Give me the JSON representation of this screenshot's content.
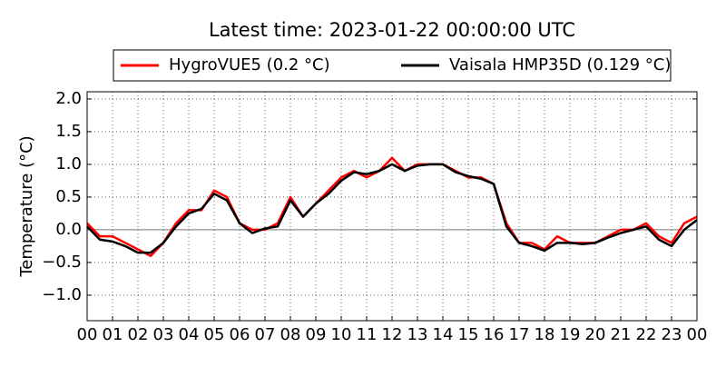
{
  "chart_data": {
    "type": "line",
    "title": "Latest time: 2023-01-22 00:00:00 UTC",
    "ylabel": "Temperature (°C)",
    "x": [
      0,
      0.5,
      1,
      1.5,
      2,
      2.5,
      3,
      3.5,
      4,
      4.5,
      5,
      5.5,
      6,
      6.5,
      7,
      7.5,
      8,
      8.5,
      9,
      9.5,
      10,
      10.5,
      11,
      11.5,
      12,
      12.5,
      13,
      13.5,
      14,
      14.5,
      15,
      15.5,
      16,
      16.5,
      17,
      17.5,
      18,
      18.5,
      19,
      19.5,
      20,
      20.5,
      21,
      21.5,
      22,
      22.5,
      23,
      23.5,
      24
    ],
    "series": [
      {
        "name": "HygroVUE5 (0.2 °C)",
        "color": "#ff0000",
        "values": [
          0.1,
          -0.1,
          -0.1,
          -0.2,
          -0.3,
          -0.4,
          -0.2,
          0.1,
          0.3,
          0.3,
          0.6,
          0.5,
          0.1,
          0,
          0,
          0.1,
          0.5,
          0.2,
          0.4,
          0.6,
          0.8,
          0.9,
          0.8,
          0.9,
          1.1,
          0.9,
          1.0,
          1.0,
          1.0,
          0.9,
          0.8,
          0.8,
          0.7,
          0.1,
          -0.2,
          -0.2,
          -0.3,
          -0.1,
          -0.2,
          -0.2,
          -0.2,
          -0.1,
          0,
          0,
          0.1,
          -0.1,
          -0.2,
          0.1,
          0.2
        ]
      },
      {
        "name": "Vaisala HMP35D (0.129 °C)",
        "color": "#000000",
        "values": [
          0.05,
          -0.15,
          -0.18,
          -0.25,
          -0.35,
          -0.35,
          -0.2,
          0.05,
          0.25,
          0.32,
          0.55,
          0.45,
          0.1,
          -0.05,
          0.02,
          0.05,
          0.45,
          0.2,
          0.4,
          0.55,
          0.75,
          0.88,
          0.85,
          0.9,
          1.0,
          0.9,
          0.98,
          1.0,
          1.0,
          0.88,
          0.82,
          0.78,
          0.7,
          0.05,
          -0.2,
          -0.25,
          -0.32,
          -0.2,
          -0.2,
          -0.22,
          -0.2,
          -0.12,
          -0.05,
          0.0,
          0.05,
          -0.15,
          -0.25,
          0.0,
          0.15
        ]
      }
    ],
    "xlim": [
      0,
      24
    ],
    "xticks": [
      {
        "value": 0,
        "label": "00"
      },
      {
        "value": 1,
        "label": "01"
      },
      {
        "value": 2,
        "label": "02"
      },
      {
        "value": 3,
        "label": "03"
      },
      {
        "value": 4,
        "label": "04"
      },
      {
        "value": 5,
        "label": "05"
      },
      {
        "value": 6,
        "label": "06"
      },
      {
        "value": 7,
        "label": "07"
      },
      {
        "value": 8,
        "label": "08"
      },
      {
        "value": 9,
        "label": "09"
      },
      {
        "value": 10,
        "label": "10"
      },
      {
        "value": 11,
        "label": "11"
      },
      {
        "value": 12,
        "label": "12"
      },
      {
        "value": 13,
        "label": "13"
      },
      {
        "value": 14,
        "label": "14"
      },
      {
        "value": 15,
        "label": "15"
      },
      {
        "value": 16,
        "label": "16"
      },
      {
        "value": 17,
        "label": "17"
      },
      {
        "value": 18,
        "label": "18"
      },
      {
        "value": 19,
        "label": "19"
      },
      {
        "value": 20,
        "label": "20"
      },
      {
        "value": 21,
        "label": "21"
      },
      {
        "value": 22,
        "label": "22"
      },
      {
        "value": 23,
        "label": "23"
      },
      {
        "value": 24,
        "label": "00"
      }
    ],
    "ylim": [
      -1.39,
      2.11
    ],
    "yticks": [
      {
        "value": -1,
        "label": "−1.0"
      },
      {
        "value": -0.5,
        "label": "−0.5"
      },
      {
        "value": 0,
        "label": "0.0"
      },
      0.5,
      {
        "value": 1,
        "label": "1.0"
      },
      1.5,
      {
        "value": 2,
        "label": "2.0"
      }
    ],
    "grid": true,
    "legend": "top"
  }
}
